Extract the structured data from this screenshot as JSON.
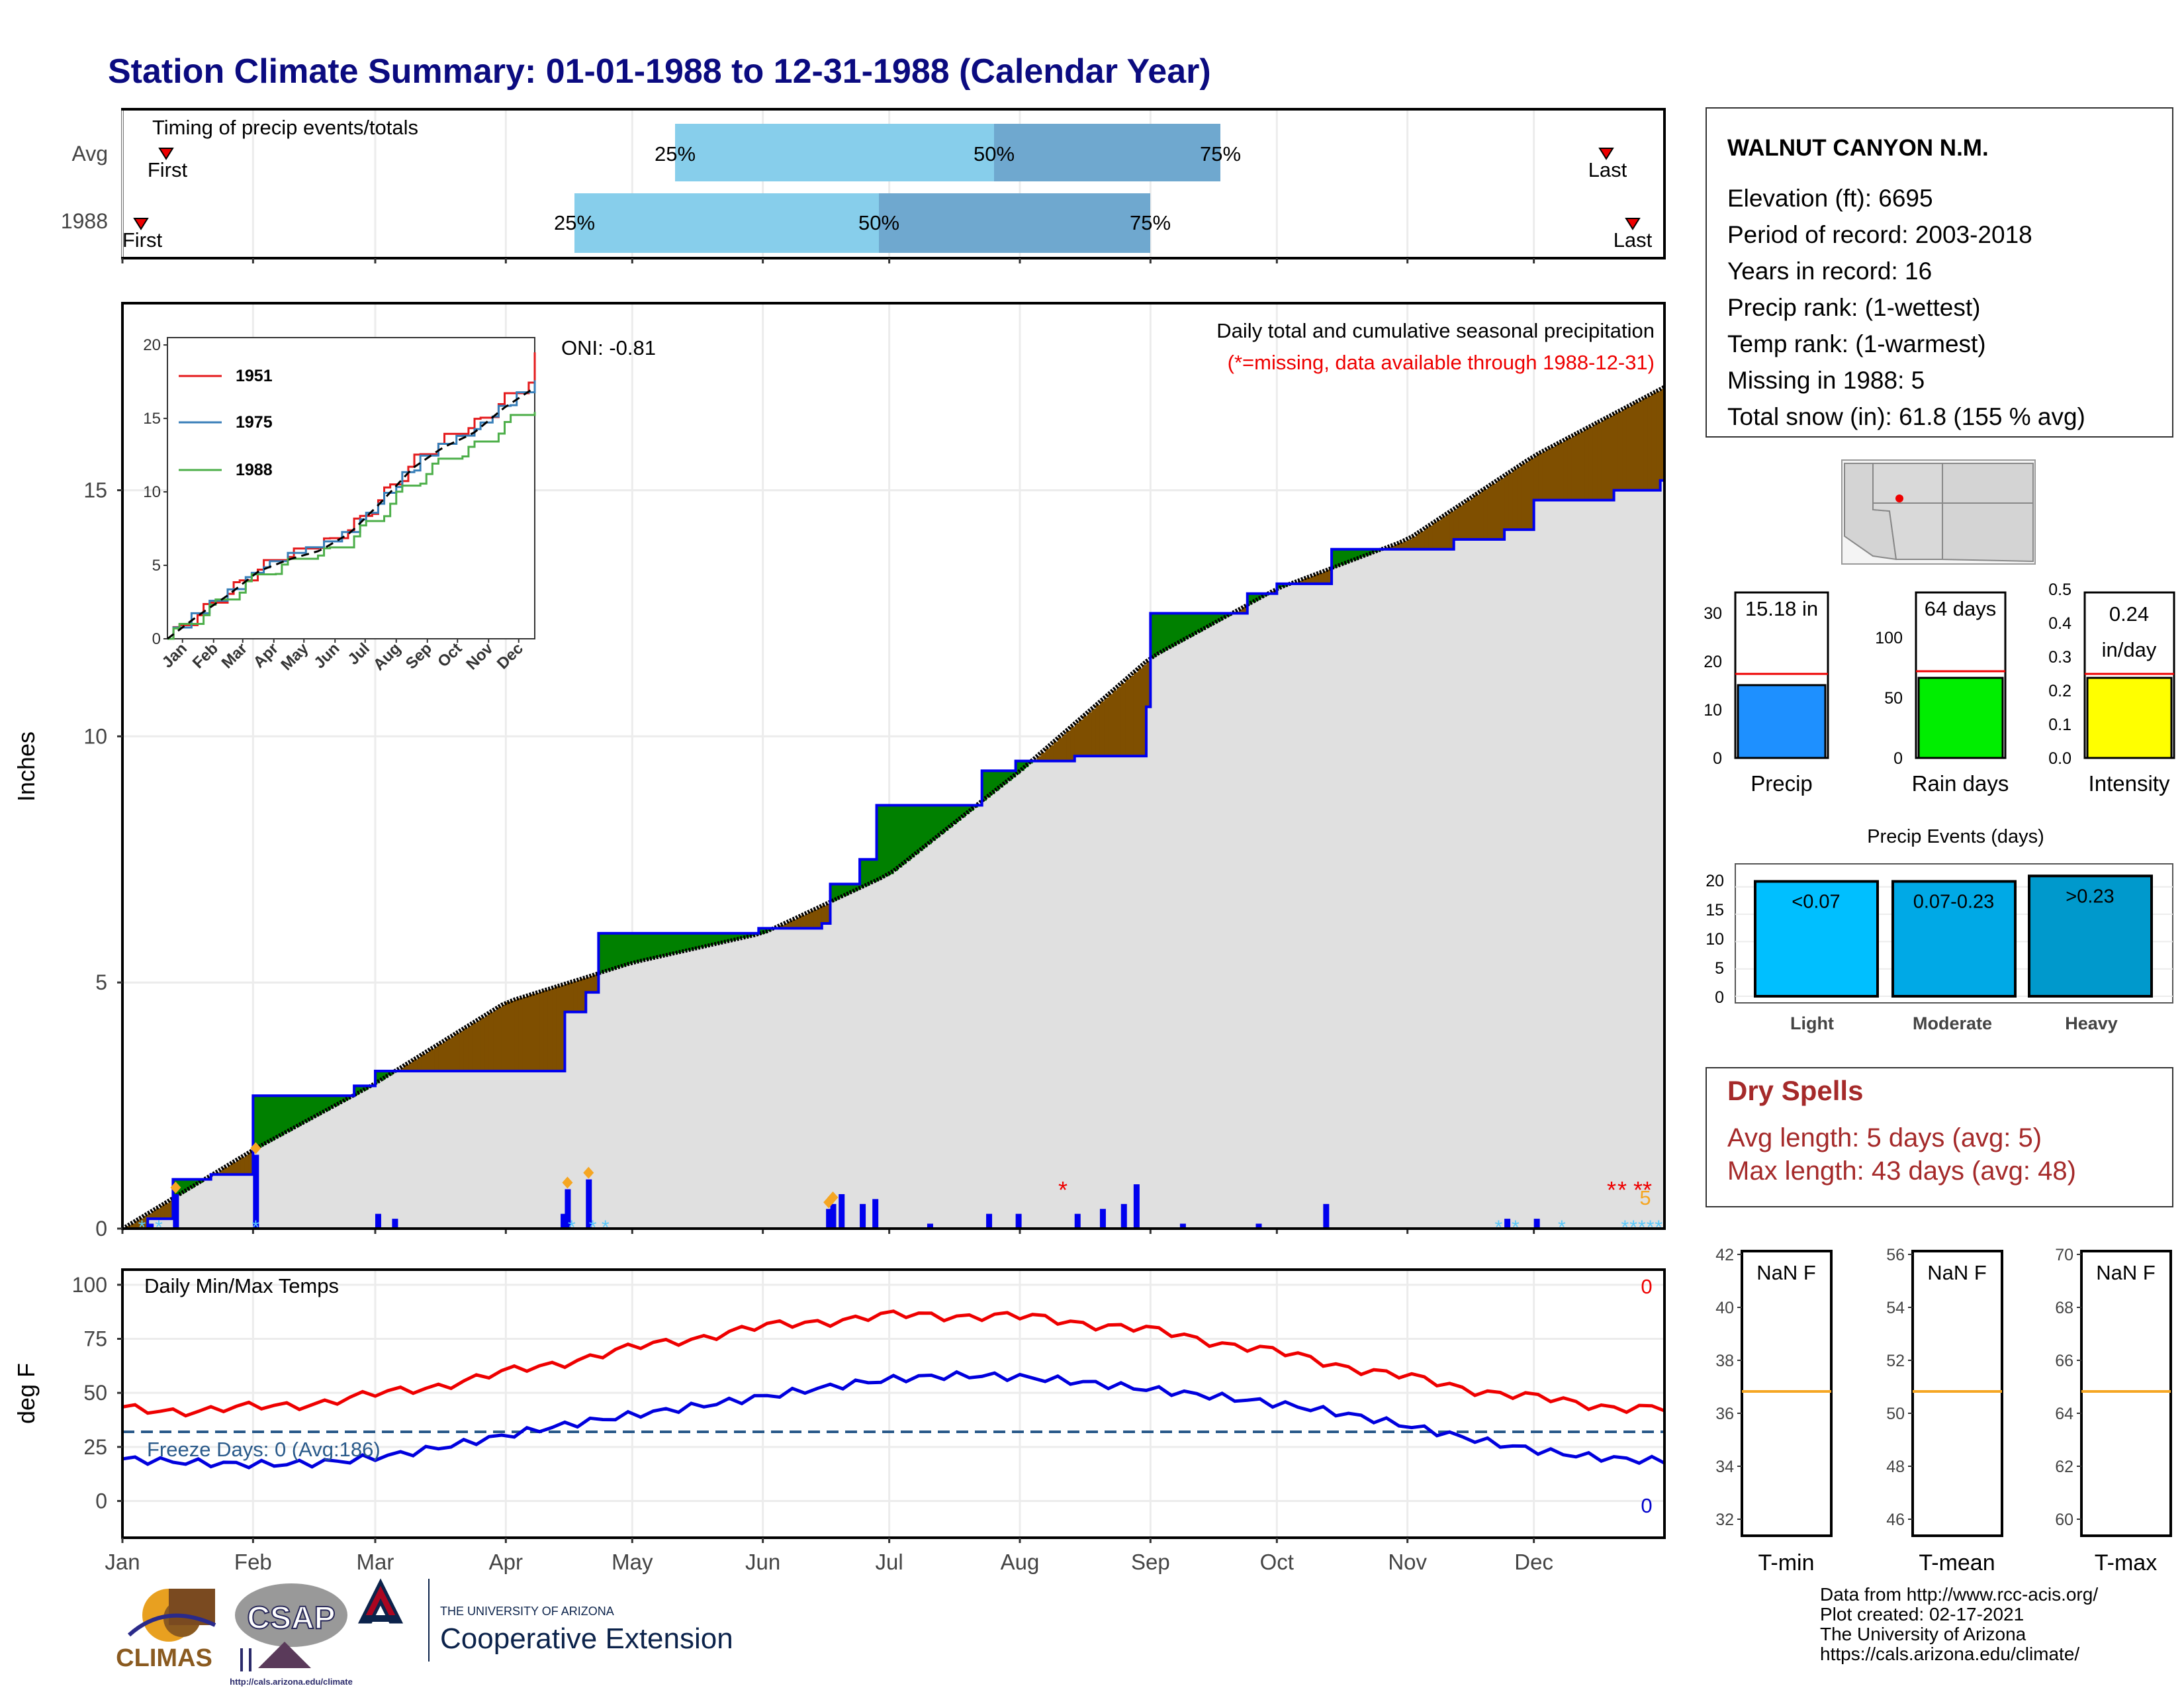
{
  "title": "Station Climate Summary: 01-01-1988 to 12-31-1988 (Calendar Year)",
  "timing": {
    "label": "Timing of precip events/totals",
    "rows": [
      "Avg",
      "1988"
    ],
    "first": "First",
    "last": "Last",
    "p25": "25%",
    "p50": "50%",
    "p75": "75%",
    "avg": {
      "first": "01-08",
      "p25": "04-29",
      "p50": "07-23",
      "p75": "09-17",
      "last": "12-19"
    },
    "year": {
      "first": "01-03",
      "p25": "04-17",
      "p50": "06-28",
      "p75": "09-10",
      "last": "12-30"
    }
  },
  "station": {
    "name": "WALNUT CANYON N.M.",
    "lines": [
      "Elevation (ft): 6695",
      "Period of record: 2003-2018",
      "Years in record: 16",
      "Precip rank:  (1-wettest)",
      "Temp rank:  (1-warmest)",
      "Missing in 1988: 5",
      "Total snow (in): 61.8 (155 % avg)"
    ]
  },
  "main": {
    "ylabel": "Inches",
    "oni": "ONI: -0.81",
    "subtitle": "Daily total and cumulative seasonal precipitation",
    "missing_note": "(*=missing, data available through 1988-12-31)",
    "missing_count": "5",
    "months": [
      "Jan",
      "Feb",
      "Mar",
      "Apr",
      "May",
      "Jun",
      "Jul",
      "Aug",
      "Sep",
      "Oct",
      "Nov",
      "Dec"
    ],
    "yticks": [
      "0",
      "5",
      "10",
      "15"
    ]
  },
  "inset": {
    "months": [
      "Jan",
      "Feb",
      "Mar",
      "Apr",
      "May",
      "Jun",
      "Jul",
      "Aug",
      "Sep",
      "Oct",
      "Nov",
      "Dec"
    ],
    "yticks": [
      "0",
      "5",
      "10",
      "15",
      "20"
    ],
    "legend": [
      "1951",
      "1975",
      "1988"
    ],
    "colors": {
      "1951": "#e41a1c",
      "1975": "#377eb8",
      "1988": "#4daf4a"
    }
  },
  "totals": {
    "precip": {
      "label": "Precip",
      "value_text": "15.18 in",
      "yticks": [
        "0",
        "10",
        "20",
        "30"
      ]
    },
    "raindays": {
      "label": "Rain days",
      "value_text": "64 days",
      "yticks": [
        "0",
        "50",
        "100"
      ]
    },
    "intensity": {
      "label": "Intensity",
      "value_text_1": "0.24",
      "value_text_2": "in/day",
      "yticks": [
        "0.0",
        "0.1",
        "0.2",
        "0.3",
        "0.4",
        "0.5"
      ]
    }
  },
  "events": {
    "title": "Precip Events (days)",
    "yticks": [
      "0",
      "5",
      "10",
      "15",
      "20"
    ],
    "bars": [
      {
        "label": "<0.07",
        "cat": "Light",
        "value": 21
      },
      {
        "label": "0.07-0.23",
        "cat": "Moderate",
        "value": 21
      },
      {
        "label": ">0.23",
        "cat": "Heavy",
        "value": 22
      }
    ]
  },
  "dry": {
    "title": "Dry Spells",
    "line1": "Avg length: 5 days (avg: 5)",
    "line2": "Max length: 43 days (avg: 48)"
  },
  "temps": {
    "title": "Daily Min/Max Temps",
    "ylabel": "deg F",
    "yticks": [
      "0",
      "25",
      "50",
      "75",
      "100"
    ],
    "freeze": "Freeze Days: 0 (Avg:186)",
    "max_count": "0",
    "min_count": "0"
  },
  "tboxes": [
    {
      "label": "T-min",
      "nan": "NaN F",
      "yticks": [
        "32",
        "34",
        "36",
        "38",
        "40",
        "42"
      ]
    },
    {
      "label": "T-mean",
      "nan": "NaN F",
      "yticks": [
        "46",
        "48",
        "50",
        "52",
        "54",
        "56"
      ]
    },
    {
      "label": "T-max",
      "nan": "NaN F",
      "yticks": [
        "60",
        "62",
        "64",
        "66",
        "68",
        "70"
      ]
    }
  ],
  "footer": {
    "lines": [
      "Data from http://www.rcc-acis.org/",
      "Plot created: 02-17-2021",
      "The University of Arizona",
      "https://cals.arizona.edu/climate/"
    ],
    "climas": "CLIMAS",
    "csap": "CSAP",
    "csap_url": "http://cals.arizona.edu/climate",
    "ua_small": "THE UNIVERSITY OF ARIZONA",
    "ua_big": "Cooperative Extension"
  },
  "chart_data": {
    "type": "area",
    "title": "Daily total and cumulative seasonal precipitation",
    "ylabel": "Inches",
    "ylim": [
      0,
      18.8
    ],
    "cumulative_1988": [
      [
        "01-01",
        0
      ],
      [
        "01-07",
        0.2
      ],
      [
        "01-13",
        1.0
      ],
      [
        "01-22",
        1.1
      ],
      [
        "02-01",
        2.7
      ],
      [
        "02-25",
        2.9
      ],
      [
        "03-01",
        3.2
      ],
      [
        "03-25",
        3.2
      ],
      [
        "04-14",
        3.2
      ],
      [
        "04-15",
        4.4
      ],
      [
        "04-20",
        4.8
      ],
      [
        "04-23",
        6.0
      ],
      [
        "05-31",
        6.1
      ],
      [
        "06-15",
        6.2
      ],
      [
        "06-17",
        7.0
      ],
      [
        "06-24",
        7.5
      ],
      [
        "06-28",
        8.6
      ],
      [
        "07-23",
        9.3
      ],
      [
        "07-31",
        9.5
      ],
      [
        "08-14",
        9.6
      ],
      [
        "08-31",
        10.6
      ],
      [
        "09-01",
        12.5
      ],
      [
        "09-24",
        12.9
      ],
      [
        "10-01",
        13.1
      ],
      [
        "10-14",
        13.8
      ],
      [
        "11-08",
        13.8
      ],
      [
        "11-12",
        14.0
      ],
      [
        "11-24",
        14.2
      ],
      [
        "12-01",
        14.8
      ],
      [
        "12-20",
        15.0
      ],
      [
        "12-31",
        15.2
      ]
    ],
    "cumulative_avg": [
      [
        "01-01",
        0
      ],
      [
        "01-31",
        1.6
      ],
      [
        "02-28",
        2.9
      ],
      [
        "03-31",
        4.6
      ],
      [
        "04-30",
        5.4
      ],
      [
        "05-31",
        6.0
      ],
      [
        "06-30",
        7.2
      ],
      [
        "07-31",
        9.3
      ],
      [
        "08-31",
        11.6
      ],
      [
        "09-30",
        13.0
      ],
      [
        "10-31",
        14.0
      ],
      [
        "11-30",
        15.7
      ],
      [
        "12-31",
        17.1
      ]
    ],
    "daily_1988": [
      [
        "01-07",
        0.1
      ],
      [
        "01-13",
        0.7
      ],
      [
        "02-01",
        1.5
      ],
      [
        "03-01",
        0.3
      ],
      [
        "03-05",
        0.2
      ],
      [
        "04-14",
        0.3
      ],
      [
        "04-15",
        0.8
      ],
      [
        "04-20",
        1.0
      ],
      [
        "06-16",
        0.4
      ],
      [
        "06-17",
        0.5
      ],
      [
        "06-19",
        0.7
      ],
      [
        "06-24",
        0.5
      ],
      [
        "06-27",
        0.6
      ],
      [
        "07-10",
        0.1
      ],
      [
        "07-24",
        0.3
      ],
      [
        "07-31",
        0.3
      ],
      [
        "08-14",
        0.3
      ],
      [
        "08-20",
        0.4
      ],
      [
        "08-25",
        0.5
      ],
      [
        "08-28",
        0.9
      ],
      [
        "09-08",
        0.1
      ],
      [
        "09-26",
        0.1
      ],
      [
        "10-12",
        0.5
      ],
      [
        "11-24",
        0.2
      ],
      [
        "12-01",
        0.2
      ]
    ]
  }
}
